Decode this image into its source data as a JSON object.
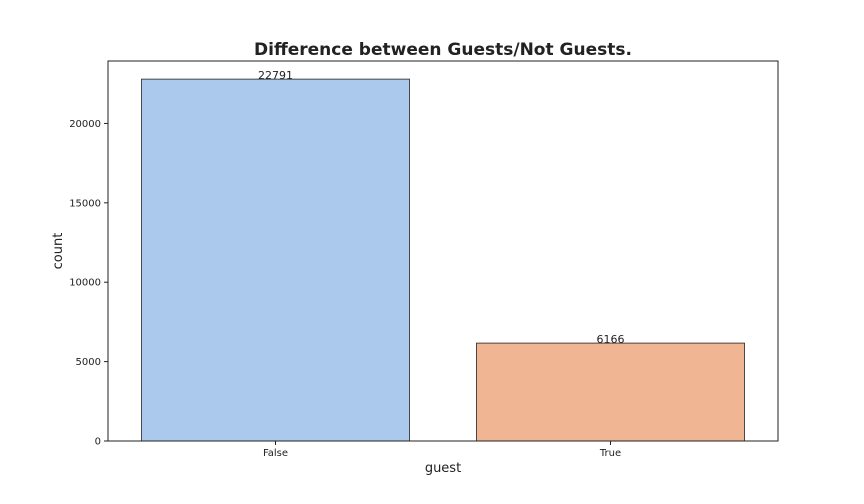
{
  "chart_data": {
    "type": "bar",
    "title": "Difference between Guests/Not Guests.",
    "xlabel": "guest",
    "ylabel": "count",
    "categories": [
      "False",
      "True"
    ],
    "values": [
      22791,
      6166
    ],
    "data_labels": [
      "22791",
      "6166"
    ],
    "colors": [
      "#abc8ed",
      "#f0b693"
    ],
    "ylim": [
      0,
      23932
    ],
    "yticks": [
      0,
      5000,
      10000,
      15000,
      20000
    ],
    "grid": false,
    "legend": "none"
  }
}
